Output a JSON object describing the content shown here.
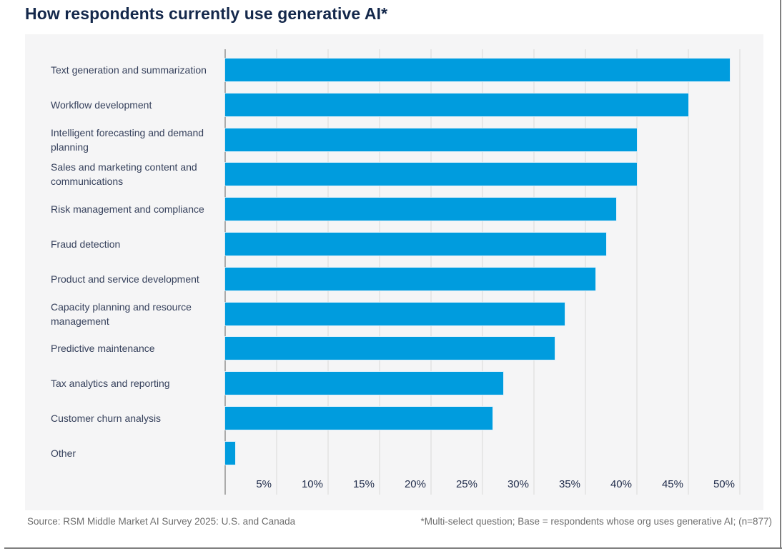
{
  "page": {
    "title": "How respondents currently use generative AI*",
    "footer_source": "Source: RSM Middle Market AI Survey 2025: U.S. and Canada",
    "footer_note": "*Multi-select question; Base = respondents whose org uses generative AI; (n=877)"
  },
  "colors": {
    "bar": "#009CDE",
    "title_text": "#14284B",
    "category_text": "#36415C",
    "tick_text": "#1F2B4A",
    "panel_bg": "#F5F5F6",
    "gridline": "#E7E7E7",
    "axis_line": "#ABABAB",
    "footer_text": "#6E6E6E",
    "page_border": "#808080"
  },
  "chart_data": {
    "type": "bar",
    "orientation": "horizontal",
    "title": "How respondents currently use generative AI*",
    "categories": [
      "Text generation and summarization",
      "Workflow development",
      "Intelligent forecasting and demand planning",
      "Sales and marketing content and communications",
      "Risk management and compliance",
      "Fraud detection",
      "Product and service development",
      "Capacity planning and resource management",
      "Predictive maintenance",
      "Tax analytics and reporting",
      "Customer churn analysis",
      "Other"
    ],
    "values": [
      49,
      45,
      40,
      40,
      38,
      37,
      36,
      33,
      32,
      27,
      26,
      1
    ],
    "unit": "%",
    "x_ticks": [
      "5%",
      "10%",
      "15%",
      "20%",
      "25%",
      "30%",
      "35%",
      "40%",
      "45%",
      "50%"
    ],
    "x_tick_values": [
      5,
      10,
      15,
      20,
      25,
      30,
      35,
      40,
      45,
      50
    ],
    "xlim": [
      0,
      52
    ],
    "grid": true,
    "legend": false,
    "value_labels_shown": false
  }
}
